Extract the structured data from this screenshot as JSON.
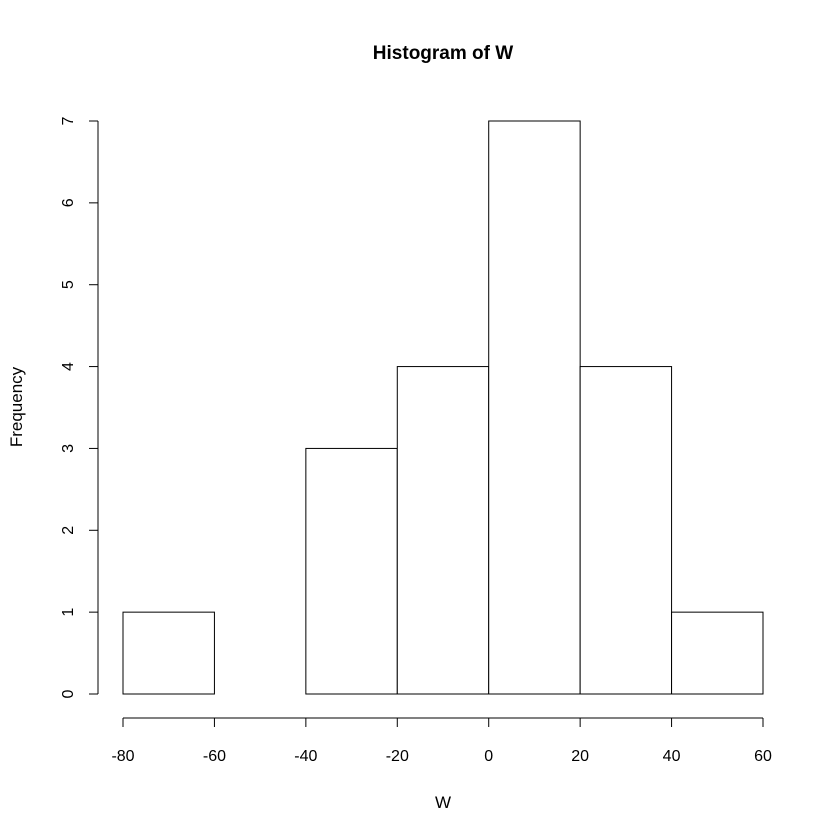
{
  "chart_data": {
    "type": "bar",
    "title": "Histogram of W",
    "xlabel": "W",
    "ylabel": "Frequency",
    "bins": [
      [
        -80,
        -60
      ],
      [
        -60,
        -40
      ],
      [
        -40,
        -20
      ],
      [
        -20,
        0
      ],
      [
        0,
        20
      ],
      [
        20,
        40
      ],
      [
        40,
        60
      ]
    ],
    "values": [
      1,
      0,
      3,
      4,
      7,
      4,
      1
    ],
    "xlim": [
      -80,
      60
    ],
    "ylim": [
      0,
      7
    ],
    "x_ticks": [
      -80,
      -60,
      -40,
      -20,
      0,
      20,
      40,
      60
    ],
    "y_ticks": [
      0,
      1,
      2,
      3,
      4,
      5,
      6,
      7
    ],
    "grid": false,
    "colors": {
      "bar_fill": "#ffffff",
      "bar_stroke": "#000000"
    }
  }
}
